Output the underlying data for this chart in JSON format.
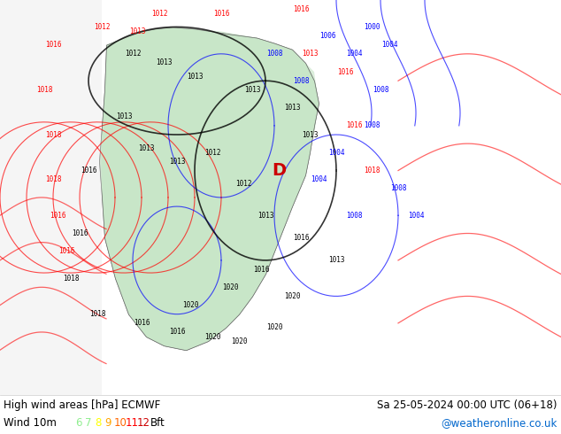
{
  "title_left": "High wind areas [hPa] ECMWF",
  "title_right": "Sa 25-05-2024 00:00 UTC (06+18)",
  "subtitle_left": "Wind 10m",
  "wind_legend_numbers": [
    "6",
    "7",
    "8",
    "9",
    "10",
    "11",
    "12"
  ],
  "wind_legend_colors": [
    "#90ee90",
    "#90ee90",
    "#ffff00",
    "#ffa500",
    "#ff6600",
    "#ff0000",
    "#cc0000"
  ],
  "wind_legend_suffix": "Bft",
  "website": "@weatheronline.co.uk",
  "website_color": "#0066cc",
  "bg_color": "#ffffff",
  "map_bg": "#c8e6c9",
  "footer_bg": "#ffffff",
  "fig_width": 6.34,
  "fig_height": 4.9
}
